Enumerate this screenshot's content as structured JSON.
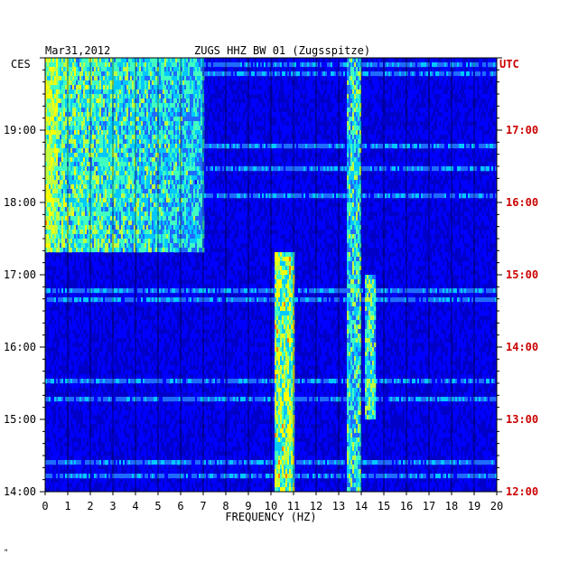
{
  "chart_data": {
    "type": "heatmap",
    "title": "ZUGS HHZ BW 01 (Zugsspitze)",
    "date": "Mar31,2012",
    "xlabel": "FREQUENCY (HZ)",
    "xlim": [
      0,
      20
    ],
    "x_ticks": [
      0,
      1,
      2,
      3,
      4,
      5,
      6,
      7,
      8,
      9,
      10,
      11,
      12,
      13,
      14,
      15,
      16,
      17,
      18,
      19,
      20
    ],
    "left_axis": {
      "label": "CES",
      "ticks": [
        {
          "label": "19:00",
          "hours_before_end": 5
        },
        {
          "label": "18:00",
          "hours_before_end": 4
        },
        {
          "label": "17:00",
          "hours_before_end": 3
        },
        {
          "label": "16:00",
          "hours_before_end": 2
        },
        {
          "label": "15:00",
          "hours_before_end": 1
        },
        {
          "label": "14:00",
          "hours_before_end": 0
        }
      ]
    },
    "right_axis": {
      "label": "UTC",
      "ticks": [
        {
          "label": "17:00",
          "hours_before_end": 5
        },
        {
          "label": "16:00",
          "hours_before_end": 4
        },
        {
          "label": "15:00",
          "hours_before_end": 3
        },
        {
          "label": "14:00",
          "hours_before_end": 2
        },
        {
          "label": "13:00",
          "hours_before_end": 1
        },
        {
          "label": "12:00",
          "hours_before_end": 0
        }
      ]
    },
    "time_span_hours": 6,
    "colormap": [
      "#000080",
      "#0000c8",
      "#0000ff",
      "#1f6bff",
      "#00c8ff",
      "#40ffc0",
      "#c0ff40",
      "#ffff00",
      "#ff8000",
      "#ff0000"
    ],
    "features": [
      {
        "name": "low-frequency noise",
        "freq_range": [
          0,
          7
        ],
        "time_hours_before_end": [
          3.3,
          6
        ],
        "level": 0.55
      },
      {
        "name": "band 10.6 Hz",
        "freq_range": [
          10.2,
          11.0
        ],
        "time_hours_before_end": [
          0,
          3.3
        ],
        "level": 0.75
      },
      {
        "name": "band 13.7 Hz",
        "freq_range": [
          13.4,
          14.0
        ],
        "time_hours_before_end": [
          0,
          6
        ],
        "level": 0.6
      },
      {
        "name": "band 14.4 Hz",
        "freq_range": [
          14.2,
          14.6
        ],
        "time_hours_before_end": [
          1,
          3.0
        ],
        "level": 0.65
      }
    ]
  },
  "footer_mark": "\""
}
